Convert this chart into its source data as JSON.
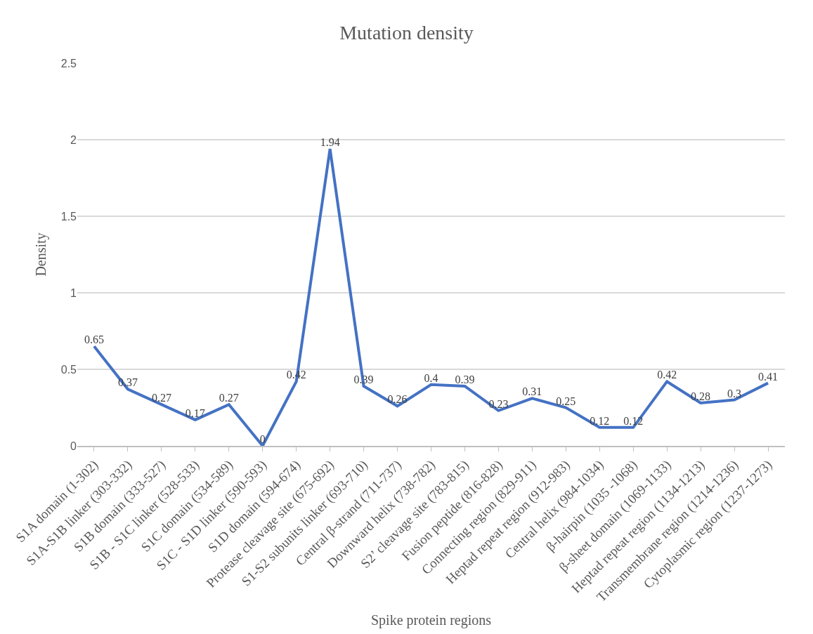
{
  "chart_data": {
    "type": "line",
    "title": "Mutation density",
    "xlabel": "Spike protein regions",
    "ylabel": "Density",
    "categories": [
      "S1A domain (1-302)",
      "S1A-S1B linker (303-332)",
      "S1B domain (333-527)",
      "S1B - S1C linker (528-533)",
      "S1C domain (534-589)",
      "S1C - S1D linker (590-593)",
      "S1D domain (594-674)",
      "Protease cleavage site (675-692)",
      "S1-S2 subunits linker (693-710)",
      "Central β-strand (711-737)",
      "Downward helix (738-782)",
      "S2’ cleavage site (783-815)",
      "Fusion peptide (816-828)",
      "Connecting region (829-911)",
      "Heptad repeat region (912-983)",
      "Central helix (984-1034)",
      "β-hairpin (1035 -1068)",
      "β-sheet domain (1069-1133)",
      "Heptad repeat region (1134-1213)",
      "Transmembrane region (1214-1236)",
      "Cytoplasmic region (1237-1273)"
    ],
    "values": [
      0.65,
      0.37,
      0.27,
      0.17,
      0.27,
      0,
      0.42,
      1.94,
      0.39,
      0.26,
      0.4,
      0.39,
      0.23,
      0.31,
      0.25,
      0.12,
      0.12,
      0.42,
      0.28,
      0.3,
      0.41
    ],
    "color": "#4472c4",
    "ylim": [
      0,
      2.5
    ],
    "yticks": [
      0,
      0.5,
      1,
      1.5,
      2,
      2.5
    ],
    "grid": "y",
    "data_labels": true,
    "marker": "none",
    "line_style": "solid"
  }
}
